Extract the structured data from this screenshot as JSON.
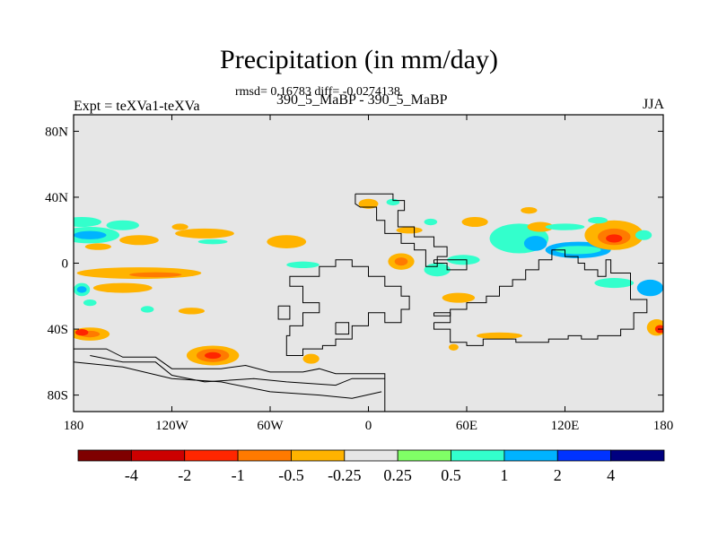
{
  "chart_data": {
    "type": "heatmap",
    "title": "Precipitation (in mm/day)",
    "stats": "rmsd= 0.16783 diff= -0.0274138",
    "subtitle": "390_5_MaBP - 390_5_MaBP",
    "left_label": "Expt = teXVa1-teXVa",
    "right_label": "JJA",
    "xlim": [
      -180,
      180
    ],
    "ylim": [
      -90,
      90
    ],
    "x_ticks": [
      {
        "value": -180,
        "label": "180"
      },
      {
        "value": -120,
        "label": "120W"
      },
      {
        "value": -60,
        "label": "60W"
      },
      {
        "value": 0,
        "label": "0"
      },
      {
        "value": 60,
        "label": "60E"
      },
      {
        "value": 120,
        "label": "120E"
      },
      {
        "value": 180,
        "label": "180"
      }
    ],
    "y_ticks": [
      {
        "value": 80,
        "label": "80N"
      },
      {
        "value": 40,
        "label": "40N"
      },
      {
        "value": 0,
        "label": "0"
      },
      {
        "value": -40,
        "label": "40S"
      },
      {
        "value": -80,
        "label": "80S"
      }
    ],
    "background_color": "#e6e6e6",
    "colorbar": {
      "colors": [
        "#7f0000",
        "#cc0000",
        "#ff2600",
        "#ff7a00",
        "#ffb300",
        "#e6e6e6",
        "#80ff66",
        "#33ffcc",
        "#00b3ff",
        "#0033ff",
        "#000080"
      ],
      "labels": [
        "-4",
        "-2",
        "-1",
        "-0.5",
        "-0.25",
        "0.25",
        "0.5",
        "1",
        "2",
        "4"
      ]
    },
    "contour_patches": [
      {
        "lon": -175,
        "lat": 25,
        "w": 12,
        "h": 3,
        "level": "0.5"
      },
      {
        "lon": -170,
        "lat": 17,
        "w": 18,
        "h": 5,
        "level": "0.5"
      },
      {
        "lon": -170,
        "lat": 17,
        "w": 10,
        "h": 2.5,
        "level": "1"
      },
      {
        "lon": -165,
        "lat": 10,
        "w": 8,
        "h": 2,
        "level": "-0.25"
      },
      {
        "lon": -150,
        "lat": 23,
        "w": 10,
        "h": 3,
        "level": "0.5"
      },
      {
        "lon": -140,
        "lat": 14,
        "w": 12,
        "h": 3,
        "level": "-0.25"
      },
      {
        "lon": -115,
        "lat": 22,
        "w": 5,
        "h": 2,
        "level": "-0.25"
      },
      {
        "lon": -100,
        "lat": 18,
        "w": 18,
        "h": 3,
        "level": "-0.25"
      },
      {
        "lon": -95,
        "lat": 13,
        "w": 9,
        "h": 1.5,
        "level": "0.5"
      },
      {
        "lon": -50,
        "lat": 13,
        "w": 12,
        "h": 4,
        "level": "-0.25"
      },
      {
        "lon": -40,
        "lat": -1,
        "w": 10,
        "h": 2,
        "level": "0.5"
      },
      {
        "lon": -140,
        "lat": -6,
        "w": 38,
        "h": 3.5,
        "level": "-0.25"
      },
      {
        "lon": -130,
        "lat": -7,
        "w": 16,
        "h": 1.5,
        "level": "-0.5"
      },
      {
        "lon": -150,
        "lat": -15,
        "w": 18,
        "h": 3,
        "level": "-0.25"
      },
      {
        "lon": -175,
        "lat": -16,
        "w": 5,
        "h": 4,
        "level": "0.5"
      },
      {
        "lon": -175,
        "lat": -16,
        "w": 3,
        "h": 2,
        "level": "1"
      },
      {
        "lon": -170,
        "lat": -24,
        "w": 4,
        "h": 2,
        "level": "0.5"
      },
      {
        "lon": -108,
        "lat": -29,
        "w": 8,
        "h": 2,
        "level": "-0.25"
      },
      {
        "lon": -135,
        "lat": -28,
        "w": 4,
        "h": 2,
        "level": "0.5"
      },
      {
        "lon": -170,
        "lat": -43,
        "w": 12,
        "h": 4,
        "level": "-0.25"
      },
      {
        "lon": -170,
        "lat": -43,
        "w": 6,
        "h": 2,
        "level": "-0.5"
      },
      {
        "lon": -175,
        "lat": -42,
        "w": 4,
        "h": 2,
        "level": "-1"
      },
      {
        "lon": -95,
        "lat": -56,
        "w": 16,
        "h": 6,
        "level": "-0.25"
      },
      {
        "lon": -95,
        "lat": -56,
        "w": 10,
        "h": 4,
        "level": "-0.5"
      },
      {
        "lon": -95,
        "lat": -56,
        "w": 5,
        "h": 2,
        "level": "-1"
      },
      {
        "lon": -35,
        "lat": -58,
        "w": 5,
        "h": 3,
        "level": "-0.25"
      },
      {
        "lon": 0,
        "lat": 36,
        "w": 6,
        "h": 3,
        "level": "-0.25"
      },
      {
        "lon": 15,
        "lat": 37,
        "w": 4,
        "h": 2,
        "level": "0.5"
      },
      {
        "lon": 25,
        "lat": 20,
        "w": 8,
        "h": 2,
        "level": "-0.25"
      },
      {
        "lon": 38,
        "lat": 25,
        "w": 4,
        "h": 2,
        "level": "0.5"
      },
      {
        "lon": 20,
        "lat": 1,
        "w": 8,
        "h": 5,
        "level": "-0.25"
      },
      {
        "lon": 20,
        "lat": 1,
        "w": 4,
        "h": 2.5,
        "level": "-0.5"
      },
      {
        "lon": 42,
        "lat": -4,
        "w": 8,
        "h": 4,
        "level": "0.5"
      },
      {
        "lon": 58,
        "lat": 2,
        "w": 10,
        "h": 3,
        "level": "0.5"
      },
      {
        "lon": 55,
        "lat": -21,
        "w": 10,
        "h": 3,
        "level": "-0.25"
      },
      {
        "lon": 65,
        "lat": 25,
        "w": 8,
        "h": 3,
        "level": "-0.25"
      },
      {
        "lon": 92,
        "lat": 15,
        "w": 18,
        "h": 9,
        "level": "0.5"
      },
      {
        "lon": 102,
        "lat": 12,
        "w": 7,
        "h": 4.5,
        "level": "1"
      },
      {
        "lon": 105,
        "lat": 22,
        "w": 8,
        "h": 3,
        "level": "-0.25"
      },
      {
        "lon": 98,
        "lat": 32,
        "w": 5,
        "h": 2,
        "level": "-0.25"
      },
      {
        "lon": 128,
        "lat": 8,
        "w": 20,
        "h": 5,
        "level": "1"
      },
      {
        "lon": 128,
        "lat": 8,
        "w": 14,
        "h": 2.5,
        "level": "0.5"
      },
      {
        "lon": 120,
        "lat": 22,
        "w": 12,
        "h": 2,
        "level": "0.5"
      },
      {
        "lon": 150,
        "lat": 17,
        "w": 18,
        "h": 9,
        "level": "-0.25"
      },
      {
        "lon": 150,
        "lat": 16,
        "w": 10,
        "h": 5,
        "level": "-0.5"
      },
      {
        "lon": 150,
        "lat": 15,
        "w": 5,
        "h": 2.5,
        "level": "-1"
      },
      {
        "lon": 168,
        "lat": 17,
        "w": 5,
        "h": 3,
        "level": "0.5"
      },
      {
        "lon": 140,
        "lat": 26,
        "w": 6,
        "h": 2,
        "level": "0.5"
      },
      {
        "lon": 150,
        "lat": -12,
        "w": 12,
        "h": 3,
        "level": "0.5"
      },
      {
        "lon": 172,
        "lat": -15,
        "w": 8,
        "h": 5,
        "level": "1"
      },
      {
        "lon": 176,
        "lat": -39,
        "w": 6,
        "h": 5,
        "level": "-0.25"
      },
      {
        "lon": 178,
        "lat": -40,
        "w": 3,
        "h": 2.5,
        "level": "-1"
      },
      {
        "lon": 80,
        "lat": -44,
        "w": 14,
        "h": 2,
        "level": "-0.25"
      },
      {
        "lon": 52,
        "lat": -51,
        "w": 3,
        "h": 2,
        "level": "-0.25"
      }
    ],
    "continent_outlines": [
      [
        [
          -180,
          -52
        ],
        [
          -170,
          -52
        ],
        [
          -160,
          -52
        ],
        [
          -150,
          -57
        ],
        [
          -130,
          -57
        ],
        [
          -120,
          -64
        ],
        [
          -90,
          -64
        ],
        [
          -75,
          -62
        ],
        [
          -60,
          -66
        ],
        [
          -40,
          -66
        ],
        [
          -30,
          -64
        ],
        [
          -20,
          -67
        ],
        [
          -10,
          -67
        ],
        [
          10,
          -67
        ],
        [
          10,
          -90
        ],
        [
          -180,
          -90
        ]
      ],
      [
        [
          -170,
          -56
        ],
        [
          -150,
          -60
        ],
        [
          -130,
          -60
        ],
        [
          -120,
          -68
        ],
        [
          -100,
          -72
        ],
        [
          -70,
          -70
        ],
        [
          -50,
          -72
        ],
        [
          -20,
          -74
        ],
        [
          -10,
          -70
        ],
        [
          10,
          -70
        ]
      ],
      [
        [
          -180,
          -60
        ],
        [
          -150,
          -63
        ],
        [
          -120,
          -70
        ],
        [
          -90,
          -72
        ],
        [
          -60,
          -78
        ],
        [
          -30,
          -80
        ],
        [
          -10,
          -82
        ],
        [
          8,
          -78
        ]
      ],
      [
        [
          -40,
          -8
        ],
        [
          -30,
          -8
        ],
        [
          -30,
          -2
        ],
        [
          -20,
          -2
        ],
        [
          -20,
          2
        ],
        [
          -10,
          2
        ],
        [
          -10,
          -2
        ],
        [
          0,
          -2
        ],
        [
          0,
          -8
        ],
        [
          10,
          -8
        ],
        [
          10,
          -14
        ],
        [
          20,
          -14
        ],
        [
          20,
          -20
        ],
        [
          25,
          -20
        ],
        [
          25,
          -28
        ],
        [
          20,
          -28
        ],
        [
          20,
          -36
        ],
        [
          15,
          -36
        ],
        [
          10,
          -36
        ],
        [
          10,
          -30
        ],
        [
          0,
          -30
        ],
        [
          0,
          -38
        ],
        [
          -10,
          -38
        ],
        [
          -10,
          -46
        ],
        [
          -20,
          -46
        ],
        [
          -20,
          -50
        ],
        [
          -28,
          -50
        ],
        [
          -28,
          -52
        ],
        [
          -40,
          -52
        ],
        [
          -40,
          -56
        ],
        [
          -50,
          -56
        ],
        [
          -50,
          -44
        ],
        [
          -48,
          -44
        ],
        [
          -48,
          -38
        ],
        [
          -40,
          -38
        ],
        [
          -40,
          -30
        ],
        [
          -30,
          -30
        ],
        [
          -30,
          -24
        ],
        [
          -40,
          -24
        ],
        [
          -40,
          -14
        ],
        [
          -48,
          -14
        ],
        [
          -48,
          -8
        ],
        [
          -40,
          -8
        ]
      ],
      [
        [
          -55,
          -26
        ],
        [
          -48,
          -26
        ],
        [
          -48,
          -34
        ],
        [
          -55,
          -34
        ],
        [
          -55,
          -26
        ]
      ],
      [
        [
          -20,
          -36
        ],
        [
          -12,
          -36
        ],
        [
          -12,
          -43
        ],
        [
          -20,
          -43
        ],
        [
          -20,
          -36
        ]
      ],
      [
        [
          40,
          -30
        ],
        [
          50,
          -30
        ],
        [
          50,
          -32
        ],
        [
          40,
          -32
        ],
        [
          40,
          -30
        ]
      ],
      [
        [
          -8,
          42
        ],
        [
          15,
          42
        ],
        [
          15,
          38
        ],
        [
          22,
          38
        ],
        [
          22,
          32
        ],
        [
          18,
          32
        ],
        [
          18,
          22
        ],
        [
          28,
          22
        ],
        [
          28,
          16
        ],
        [
          40,
          16
        ],
        [
          40,
          10
        ],
        [
          48,
          10
        ],
        [
          48,
          4
        ],
        [
          42,
          4
        ],
        [
          42,
          -2
        ],
        [
          35,
          -2
        ],
        [
          35,
          8
        ],
        [
          28,
          8
        ],
        [
          28,
          12
        ],
        [
          20,
          12
        ],
        [
          20,
          18
        ],
        [
          10,
          18
        ],
        [
          10,
          26
        ],
        [
          5,
          26
        ],
        [
          5,
          34
        ],
        [
          -5,
          34
        ],
        [
          -8,
          36
        ],
        [
          -8,
          42
        ]
      ],
      [
        [
          40,
          2
        ],
        [
          60,
          2
        ],
        [
          60,
          -4
        ],
        [
          48,
          -4
        ],
        [
          48,
          0
        ],
        [
          40,
          0
        ],
        [
          40,
          2
        ]
      ],
      [
        [
          40,
          -36
        ],
        [
          50,
          -36
        ],
        [
          50,
          -28
        ],
        [
          60,
          -28
        ],
        [
          60,
          -24
        ],
        [
          72,
          -24
        ],
        [
          72,
          -20
        ],
        [
          80,
          -20
        ],
        [
          80,
          -14
        ],
        [
          88,
          -14
        ],
        [
          88,
          -10
        ],
        [
          96,
          -10
        ],
        [
          96,
          -4
        ],
        [
          104,
          -4
        ],
        [
          104,
          2
        ],
        [
          112,
          2
        ],
        [
          112,
          8
        ],
        [
          120,
          8
        ],
        [
          120,
          4
        ],
        [
          128,
          4
        ],
        [
          128,
          0
        ],
        [
          132,
          0
        ],
        [
          132,
          -4
        ],
        [
          140,
          -4
        ],
        [
          140,
          -8
        ],
        [
          145,
          -8
        ],
        [
          145,
          2
        ],
        [
          148,
          2
        ],
        [
          148,
          -6
        ],
        [
          160,
          -6
        ],
        [
          160,
          -22
        ],
        [
          170,
          -22
        ],
        [
          170,
          -30
        ],
        [
          162,
          -30
        ],
        [
          162,
          -40
        ],
        [
          154,
          -40
        ],
        [
          154,
          -44
        ],
        [
          140,
          -44
        ],
        [
          140,
          -46
        ],
        [
          130,
          -46
        ],
        [
          130,
          -44
        ],
        [
          122,
          -44
        ],
        [
          122,
          -46
        ],
        [
          110,
          -46
        ],
        [
          110,
          -48
        ],
        [
          90,
          -48
        ],
        [
          90,
          -46
        ],
        [
          70,
          -46
        ],
        [
          70,
          -50
        ],
        [
          60,
          -50
        ],
        [
          60,
          -48
        ],
        [
          50,
          -48
        ],
        [
          50,
          -40
        ],
        [
          40,
          -40
        ],
        [
          40,
          -36
        ]
      ]
    ]
  }
}
